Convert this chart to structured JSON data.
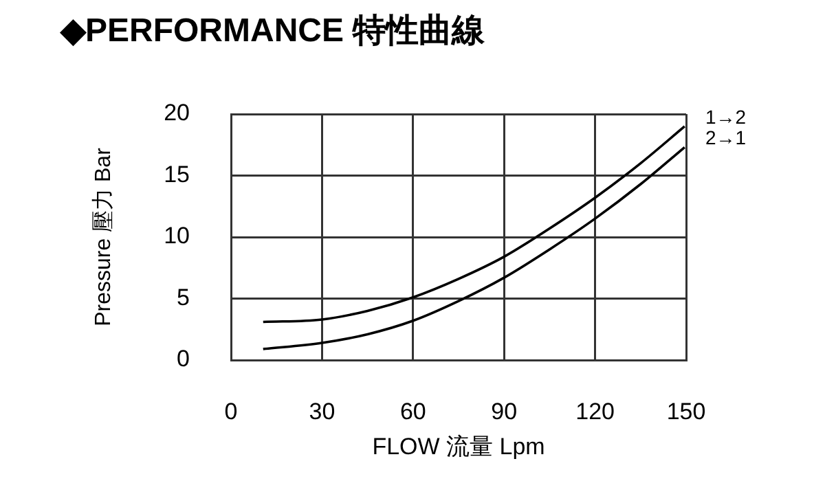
{
  "chart_data": {
    "type": "line",
    "title": "◆PERFORMANCE 特性曲線",
    "xlabel": "FLOW 流量 Lpm",
    "ylabel": "Pressure 壓力 Bar",
    "xlim": [
      0,
      150
    ],
    "xticks": [
      0,
      30,
      60,
      90,
      120,
      150
    ],
    "ylim": [
      0,
      20
    ],
    "yticks": [
      0,
      5,
      10,
      15,
      20
    ],
    "grid": true,
    "legend": false,
    "marker": "none",
    "line_style": "solid",
    "series": [
      {
        "name": "1→2",
        "color": "#000000",
        "x": [
          10.6,
          30,
          45,
          60,
          75,
          90,
          105,
          120,
          135,
          149.5
        ],
        "values": [
          3.1,
          3.3,
          4.0,
          5.1,
          6.6,
          8.4,
          10.7,
          13.2,
          16.0,
          19.0
        ]
      },
      {
        "name": "2→1",
        "color": "#000000",
        "x": [
          10.6,
          30,
          45,
          60,
          75,
          90,
          105,
          120,
          135,
          149.5
        ],
        "values": [
          0.9,
          1.4,
          2.1,
          3.2,
          4.8,
          6.7,
          9.0,
          11.5,
          14.3,
          17.3
        ]
      }
    ]
  }
}
